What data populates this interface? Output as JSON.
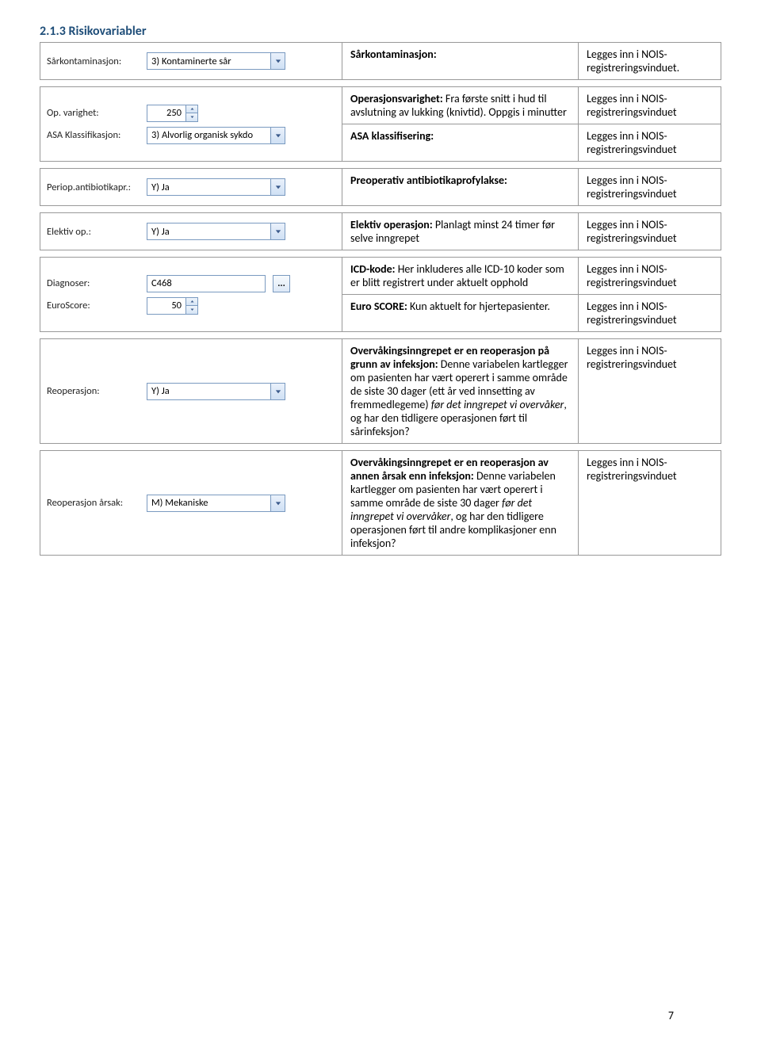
{
  "section_title": "2.1.3  Risikovariabler",
  "common_result": "Legges inn i NOIS-registreringsvinduet",
  "rows": [
    {
      "label": "Sårkontaminasjon:",
      "field_type": "combo",
      "value": "3) Kontaminerte sår",
      "desc_label": "Sårkontaminasjon:",
      "desc_text": "",
      "result": "Legges inn i NOIS-registreringsvinduet."
    },
    {
      "multi": true,
      "fields": [
        {
          "label": "Op. varighet:",
          "field_type": "spin",
          "value": "250"
        },
        {
          "label": "ASA Klassifikasjon:",
          "field_type": "combo",
          "value": "3) Alvorlig organisk sykdo"
        }
      ],
      "descs": [
        {
          "label": "Operasjonsvarighet:",
          "text": "Fra første snitt i hud til avslutning av lukking (knivtid). Oppgis i minutter",
          "result": "Legges inn i NOIS-registreringsvinduet"
        },
        {
          "label": "ASA klassifisering:",
          "text": "",
          "result": "Legges inn i NOIS-registreringsvinduet"
        }
      ]
    },
    {
      "label": "Periop.antibiotikapr.:",
      "field_type": "combo",
      "value": "Y) Ja",
      "desc_label": "Preoperativ antibiotikaprofylakse:",
      "desc_text": "",
      "result": "Legges inn i NOIS-registreringsvinduet"
    },
    {
      "label": "Elektiv op.:",
      "field_type": "combo",
      "value": "Y) Ja",
      "desc_label": "Elektiv operasjon:",
      "desc_text": "Planlagt minst 24 timer før selve inngrepet",
      "result": "Legges inn i NOIS-registreringsvinduet"
    },
    {
      "multi": true,
      "fields": [
        {
          "label": "Diagnoser:",
          "field_type": "textdots",
          "value": "C468"
        },
        {
          "label": "EuroScore:",
          "field_type": "spin",
          "value": "50"
        }
      ],
      "descs": [
        {
          "label": "ICD-kode:",
          "text": "Her inkluderes alle ICD-10 koder som er blitt registrert under aktuelt opphold",
          "result": "Legges inn i NOIS-registreringsvinduet"
        },
        {
          "label": "Euro SCORE:",
          "text": "Kun aktuelt for hjertepasienter.",
          "result": "Legges inn i NOIS-registreringsvinduet"
        }
      ]
    },
    {
      "label": "Reoperasjon:",
      "field_type": "combo",
      "value": "Y) Ja",
      "desc_label": "Overvåkingsinngrepet er en reoperasjon på grunn av infeksjon:",
      "desc_text": "Denne variabelen kartlegger om pasienten har vært operert i samme område de siste 30 dager (ett år ved innsetting av fremmedlegeme) <em>før det inngrepet vi overvåker</em>, og har den tidligere operasjonen ført til sårinfeksjon?",
      "result": "Legges inn i NOIS-registreringsvinduet"
    },
    {
      "label": "Reoperasjon årsak:",
      "field_type": "combo",
      "value": "M) Mekaniske",
      "desc_label": "Overvåkingsinngrepet er en reoperasjon av annen årsak enn infeksjon:",
      "desc_text": "Denne variabelen kartlegger om pasienten har vært operert i samme område de siste 30 dager <em>før det inngrepet vi overvåker</em>, og har den tidligere operasjonen ført til andre komplikasjoner enn infeksjon?",
      "result": "Legges inn i NOIS-registreringsvinduet"
    }
  ],
  "page_number": "7"
}
